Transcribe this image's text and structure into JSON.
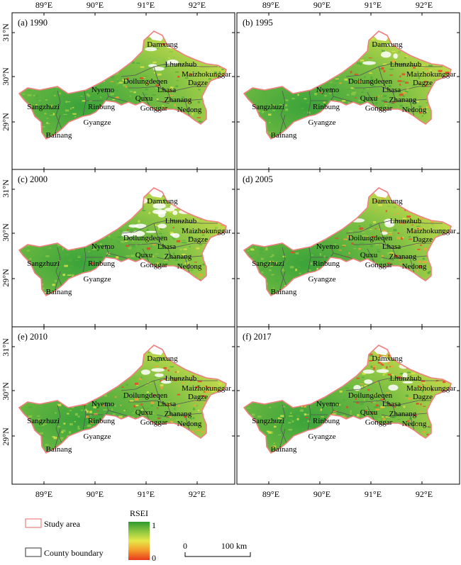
{
  "lon_ticks": [
    "89°E",
    "90°E",
    "91°E",
    "92°E"
  ],
  "lat_ticks": [
    "31°N",
    "30°N",
    "29°N"
  ],
  "counties": [
    "Damxung",
    "Lhunzhub",
    "Maizhokunggar",
    "Doilungdeqen",
    "Dagze",
    "Lhasa",
    "Nyemo",
    "Quxu",
    "Zhanang",
    "Sangzhuzi",
    "Rinbung",
    "Gonggar",
    "Nedong",
    "Gyangze",
    "Bainang"
  ],
  "panels": [
    {
      "title": "(a) 1990"
    },
    {
      "title": "(b) 1995"
    },
    {
      "title": "(c) 2000"
    },
    {
      "title": "(d) 2005"
    },
    {
      "title": "(e) 2010"
    },
    {
      "title": "(f) 2017"
    }
  ],
  "legend": {
    "study_area": "Study area",
    "county_boundary": "County boundary",
    "rsei_title": "RSEI",
    "rsei_max": "1",
    "rsei_min": "0",
    "colors": {
      "high": "#2e9a2e",
      "mid": "#e6e84a",
      "low": "#e8381e",
      "study_area_line": "#f08080",
      "county_line": "#555555"
    }
  },
  "scale_bar": {
    "zero": "0",
    "label": "100 km"
  }
}
